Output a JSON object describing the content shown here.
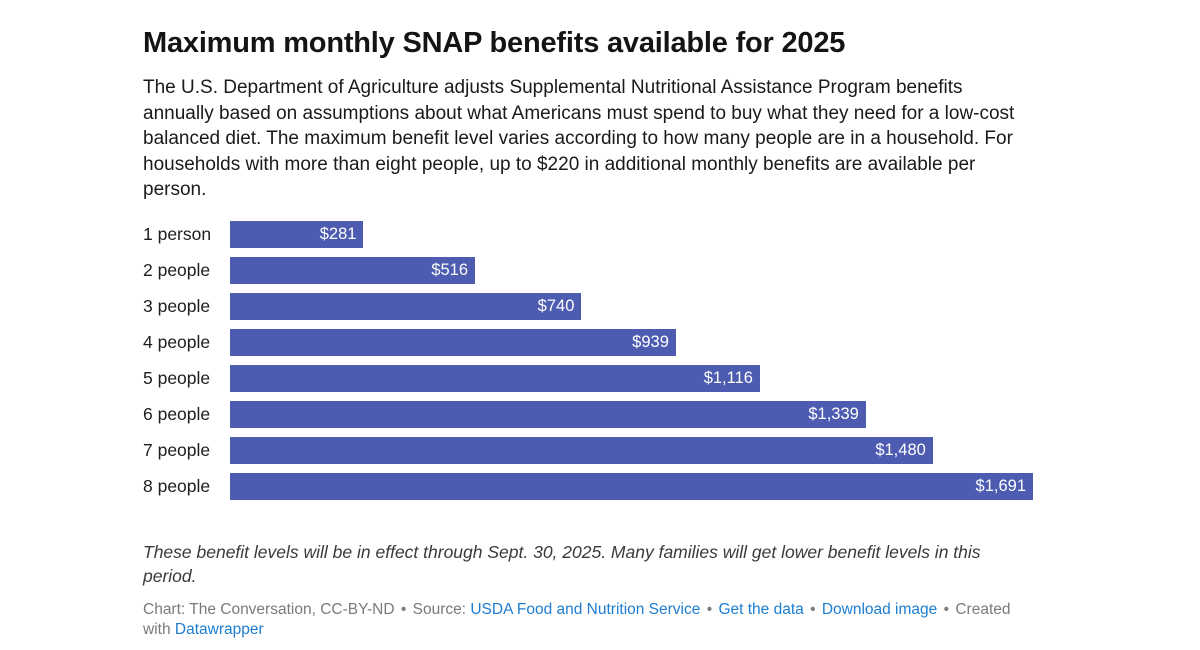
{
  "header": {
    "title": "Maximum monthly SNAP benefits available for 2025",
    "description": "The U.S. Department of Agriculture adjusts Supplemental Nutritional Assistance Program benefits annually based on assumptions about what Americans must spend to buy what they need for a low-cost balanced diet. The maximum benefit level varies according to how many people are in a household. For households with more than eight people, up to $220 in additional monthly benefits are available per person."
  },
  "chart_data": {
    "type": "bar",
    "orientation": "horizontal",
    "title": "Maximum monthly SNAP benefits available for 2025",
    "categories": [
      "1 person",
      "2 people",
      "3 people",
      "4 people",
      "5 people",
      "6 people",
      "7 people",
      "8 people"
    ],
    "values": [
      281,
      516,
      740,
      939,
      1116,
      1339,
      1480,
      1691
    ],
    "value_labels": [
      "$281",
      "$516",
      "$740",
      "$939",
      "$1,116",
      "$1,339",
      "$1,480",
      "$1,691"
    ],
    "xlabel": "",
    "ylabel": "",
    "xlim": [
      0,
      1691
    ],
    "grid": false,
    "legend": false,
    "bar_color": "#4d5cb0",
    "value_label_color": "#ffffff"
  },
  "footer": {
    "note": "These benefit levels will be in effect through Sept. 30, 2025. Many families will get lower benefit levels in this period.",
    "chart_credit": "Chart: The Conversation, CC-BY-ND",
    "separator": "•",
    "source_label": "Source:",
    "source_link": "USDA Food and Nutrition Service",
    "get_data_link": "Get the data",
    "download_image_link": "Download image",
    "created_with": "Created with",
    "datawrapper_link": "Datawrapper",
    "link_color": "#1d7dd0"
  }
}
